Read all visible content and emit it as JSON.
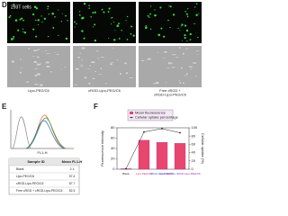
{
  "panel_d": {
    "label": "D",
    "cell_line": "293T cells",
    "captions": [
      "Lipo-PEG/C6",
      "cRGD-Lipo-PEG/C6",
      "Free cRGD +\ncRGD-Lipo-PEG/C6"
    ]
  },
  "panel_e": {
    "label": "E",
    "x_label": "FL1-H",
    "table": {
      "header": [
        "Sample ID",
        "Mean FL1-H"
      ],
      "rows": [
        [
          "Blank",
          "2.1"
        ],
        [
          "Lipo-PEG/C6",
          "57.4"
        ],
        [
          "cRGD-Lipo-PEG/C6",
          "57.7"
        ],
        [
          "Free cRGD + cRGD-Lipo-PEG/C6",
          "52.3"
        ]
      ]
    }
  },
  "chart_data": {
    "type": "bar",
    "label": "F",
    "categories": [
      "Blank",
      "Lipo-PEG/C6",
      "cRGD-Lipo-PEG/C6",
      "Free cRGD + cRGD-Lipo-PEG/C6"
    ],
    "series": [
      {
        "name": "Mean fluorescence",
        "type": "bar",
        "color": "#e8466e",
        "values": [
          1,
          56,
          52,
          50
        ]
      },
      {
        "name": "Cellular uptake percentage",
        "type": "line",
        "color": "#222222",
        "axis": "y2",
        "values": [
          1,
          90,
          98,
          88
        ]
      }
    ],
    "y_label": "Fluorescence intensity",
    "y2_label": "Cellular uptake (%)",
    "ylim": [
      0,
      80
    ],
    "yticks": [
      0,
      20,
      40,
      60,
      80
    ],
    "y2lim": [
      0,
      100
    ],
    "y2ticks": [
      0,
      20,
      40,
      60,
      80,
      100
    ]
  }
}
